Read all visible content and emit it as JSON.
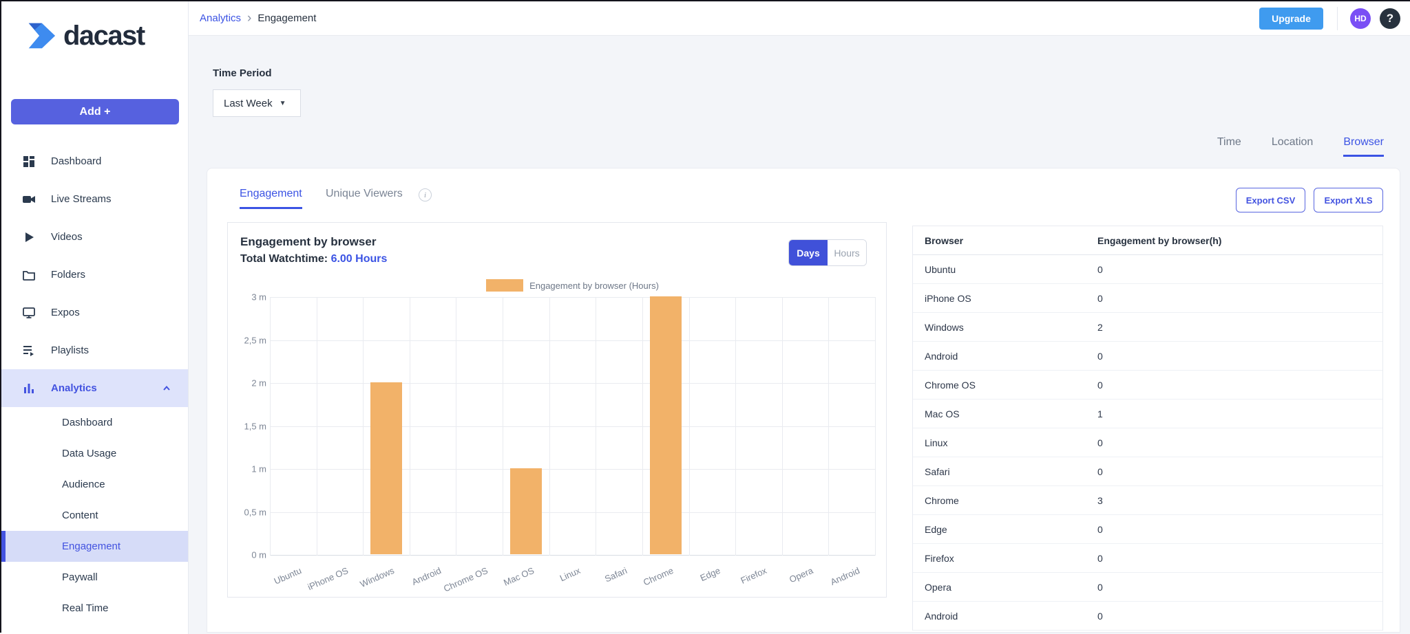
{
  "brand": {
    "name": "dacast"
  },
  "sidebar": {
    "add_button": "Add +",
    "items": [
      {
        "label": "Dashboard",
        "icon": "dashboard-icon"
      },
      {
        "label": "Live Streams",
        "icon": "live-streams-icon"
      },
      {
        "label": "Videos",
        "icon": "videos-icon"
      },
      {
        "label": "Folders",
        "icon": "folders-icon"
      },
      {
        "label": "Expos",
        "icon": "expos-icon"
      },
      {
        "label": "Playlists",
        "icon": "playlists-icon"
      },
      {
        "label": "Analytics",
        "icon": "analytics-icon",
        "active": true,
        "expanded": true
      }
    ],
    "analytics_subitems": [
      {
        "label": "Dashboard"
      },
      {
        "label": "Data Usage"
      },
      {
        "label": "Audience"
      },
      {
        "label": "Content"
      },
      {
        "label": "Engagement",
        "active": true
      },
      {
        "label": "Paywall"
      },
      {
        "label": "Real Time"
      }
    ]
  },
  "header": {
    "breadcrumb": [
      "Analytics",
      "Engagement"
    ],
    "upgrade_label": "Upgrade",
    "avatar_initials": "HD",
    "help_glyph": "?"
  },
  "filters": {
    "time_period_label": "Time Period",
    "time_period_value": "Last Week"
  },
  "view_tabs": [
    {
      "label": "Time"
    },
    {
      "label": "Location"
    },
    {
      "label": "Browser",
      "active": true
    }
  ],
  "card": {
    "tab_engagement": "Engagement",
    "tab_unique_viewers": "Unique Viewers",
    "export_csv": "Export CSV",
    "export_xls": "Export XLS"
  },
  "chart_panel": {
    "title": "Engagement by browser",
    "watchtime_label": "Total Watchtime: ",
    "watchtime_value": "6.00 Hours",
    "toggle_options": [
      "Days",
      "Hours"
    ],
    "toggle_active": "Days",
    "legend_label": "Engagement by browser (Hours)"
  },
  "chart_data": {
    "type": "bar",
    "title": "Engagement by browser (Hours)",
    "categories": [
      "Ubuntu",
      "iPhone OS",
      "Windows",
      "Android",
      "Chrome OS",
      "Mac OS",
      "Linux",
      "Safari",
      "Chrome",
      "Edge",
      "Firefox",
      "Opera",
      "Android"
    ],
    "values": [
      0,
      0,
      2,
      0,
      0,
      1,
      0,
      0,
      3,
      0,
      0,
      0,
      0
    ],
    "ylim": [
      0,
      3
    ],
    "yticks": [
      {
        "v": 0,
        "label": "0 m"
      },
      {
        "v": 0.5,
        "label": "0,5 m"
      },
      {
        "v": 1,
        "label": "1 m"
      },
      {
        "v": 1.5,
        "label": "1,5 m"
      },
      {
        "v": 2,
        "label": "2 m"
      },
      {
        "v": 2.5,
        "label": "2,5 m"
      },
      {
        "v": 3,
        "label": "3 m"
      }
    ],
    "grid": true,
    "legend_position": "top",
    "bar_color": "#f2b269"
  },
  "table": {
    "headers": [
      "Browser",
      "Engagement by browser(h)"
    ],
    "rows": [
      [
        "Ubuntu",
        "0"
      ],
      [
        "iPhone OS",
        "0"
      ],
      [
        "Windows",
        "2"
      ],
      [
        "Android",
        "0"
      ],
      [
        "Chrome OS",
        "0"
      ],
      [
        "Mac OS",
        "1"
      ],
      [
        "Linux",
        "0"
      ],
      [
        "Safari",
        "0"
      ],
      [
        "Chrome",
        "3"
      ],
      [
        "Edge",
        "0"
      ],
      [
        "Firefox",
        "0"
      ],
      [
        "Opera",
        "0"
      ],
      [
        "Android",
        "0"
      ]
    ]
  },
  "colors": {
    "accent": "#4353e0",
    "accent_light_bg": "#dee3fb",
    "bar_orange": "#f2b269",
    "upgrade_blue": "#3f9bef",
    "avatar_purple": "#7a4ff5",
    "toggle_active_blue": "#4051d9"
  }
}
